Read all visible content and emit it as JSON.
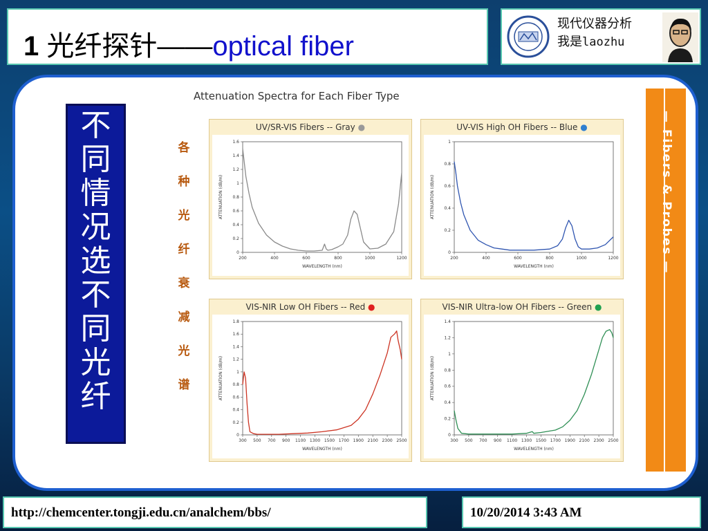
{
  "header": {
    "title_number": "1",
    "title_cn": "光纤探针——",
    "title_en": "optical fiber",
    "brand_line1": "现代仪器分析",
    "brand_line2_cn": "我是",
    "brand_line2_en": "laozhu",
    "logo_icon": "university-seal-icon",
    "avatar_icon": "portrait-avatar-icon"
  },
  "vertical_caption": "不同情况选不同光纤",
  "figure": {
    "title": "Attenuation Spectra for Each Fiber Type",
    "side_label": "各种光纤衰减光谱",
    "sidebar_text": "— Fibers & Probes —"
  },
  "footer": {
    "url": "http://chemcenter.tongji.edu.cn/analchem/bbs/",
    "datetime": "10/20/2014 3:43 AM"
  },
  "colors": {
    "gray": "#8a8a8a",
    "blue": "#2f55b0",
    "red": "#cc3322",
    "green": "#2f8f55",
    "accent_orange": "#f28a16"
  },
  "chart_data": [
    {
      "type": "line",
      "title": "UV/SR-VIS Fibers -- Gray",
      "xlabel": "WAVELENGTH (nm)",
      "ylabel": "ATTENUATION (dB/m)",
      "xlim": [
        200,
        1200
      ],
      "ylim": [
        0,
        1.6
      ],
      "xticks": [
        200,
        400,
        600,
        800,
        1000,
        1200
      ],
      "yticks": [
        0,
        0.2,
        0.4,
        0.6,
        0.8,
        1.0,
        1.2,
        1.4,
        1.6
      ],
      "color": "#8a8a8a",
      "series": [
        {
          "x": [
            200,
            210,
            220,
            240,
            260,
            300,
            350,
            400,
            450,
            500,
            550,
            600,
            650,
            700,
            715,
            725,
            735,
            760,
            800,
            830,
            860,
            880,
            900,
            920,
            940,
            960,
            1000,
            1050,
            1100,
            1150,
            1180,
            1200
          ],
          "y": [
            1.5,
            1.3,
            1.1,
            0.85,
            0.65,
            0.42,
            0.25,
            0.15,
            0.09,
            0.05,
            0.03,
            0.02,
            0.02,
            0.03,
            0.12,
            0.05,
            0.03,
            0.04,
            0.08,
            0.12,
            0.25,
            0.48,
            0.6,
            0.55,
            0.35,
            0.15,
            0.05,
            0.06,
            0.12,
            0.3,
            0.7,
            1.15
          ]
        }
      ]
    },
    {
      "type": "line",
      "title": "UV-VIS High OH Fibers -- Blue",
      "xlabel": "WAVELENGTH (nm)",
      "ylabel": "ATTENUATION (dB/m)",
      "xlim": [
        200,
        1200
      ],
      "ylim": [
        0,
        1.0
      ],
      "xticks": [
        200,
        400,
        600,
        800,
        1000,
        1200
      ],
      "yticks": [
        0,
        0.2,
        0.4,
        0.6,
        0.8,
        1.0
      ],
      "color": "#2f55b0",
      "series": [
        {
          "x": [
            200,
            210,
            220,
            240,
            260,
            300,
            350,
            400,
            450,
            500,
            550,
            600,
            700,
            800,
            850,
            880,
            900,
            920,
            940,
            960,
            980,
            1000,
            1050,
            1100,
            1150,
            1200
          ],
          "y": [
            0.82,
            0.72,
            0.6,
            0.45,
            0.34,
            0.2,
            0.11,
            0.07,
            0.04,
            0.03,
            0.02,
            0.02,
            0.02,
            0.03,
            0.06,
            0.12,
            0.22,
            0.29,
            0.24,
            0.12,
            0.05,
            0.03,
            0.03,
            0.04,
            0.07,
            0.14
          ]
        }
      ]
    },
    {
      "type": "line",
      "title": "VIS-NIR Low OH Fibers -- Red",
      "xlabel": "WAVELENGTH (nm)",
      "ylabel": "ATTENUATION (dB/m)",
      "xlim": [
        300,
        2500
      ],
      "ylim": [
        0,
        1.8
      ],
      "xticks": [
        300,
        500,
        700,
        900,
        1100,
        1300,
        1500,
        1700,
        1900,
        2100,
        2300,
        2500
      ],
      "yticks": [
        0,
        0.2,
        0.4,
        0.6,
        0.8,
        1.0,
        1.2,
        1.4,
        1.6,
        1.8
      ],
      "color": "#cc3322",
      "series": [
        {
          "x": [
            300,
            320,
            340,
            360,
            380,
            400,
            450,
            500,
            600,
            800,
            1000,
            1200,
            1400,
            1600,
            1800,
            1900,
            2000,
            2100,
            2200,
            2300,
            2350,
            2400,
            2430,
            2450,
            2480,
            2500
          ],
          "y": [
            0.8,
            1.0,
            0.9,
            0.5,
            0.2,
            0.05,
            0.02,
            0.01,
            0.01,
            0.01,
            0.02,
            0.03,
            0.05,
            0.08,
            0.15,
            0.25,
            0.4,
            0.65,
            0.95,
            1.3,
            1.55,
            1.6,
            1.65,
            1.5,
            1.35,
            1.2
          ]
        }
      ]
    },
    {
      "type": "line",
      "title": "VIS-NIR Ultra-low OH Fibers -- Green",
      "xlabel": "WAVELENGTH (nm)",
      "ylabel": "ATTENUATION (dB/m)",
      "xlim": [
        300,
        2500
      ],
      "ylim": [
        0,
        1.4
      ],
      "xticks": [
        300,
        500,
        700,
        900,
        1100,
        1300,
        1500,
        1700,
        1900,
        2100,
        2300,
        2500
      ],
      "yticks": [
        0,
        0.2,
        0.4,
        0.6,
        0.8,
        1.0,
        1.2,
        1.4
      ],
      "color": "#2f8f55",
      "series": [
        {
          "x": [
            300,
            320,
            350,
            400,
            500,
            700,
            900,
            1100,
            1300,
            1380,
            1400,
            1500,
            1700,
            1800,
            1900,
            2000,
            2100,
            2200,
            2300,
            2350,
            2400,
            2450,
            2480,
            2500
          ],
          "y": [
            0.3,
            0.2,
            0.08,
            0.02,
            0.01,
            0.01,
            0.01,
            0.01,
            0.02,
            0.04,
            0.02,
            0.03,
            0.06,
            0.1,
            0.18,
            0.3,
            0.5,
            0.75,
            1.05,
            1.2,
            1.28,
            1.3,
            1.26,
            1.2
          ]
        }
      ]
    }
  ]
}
